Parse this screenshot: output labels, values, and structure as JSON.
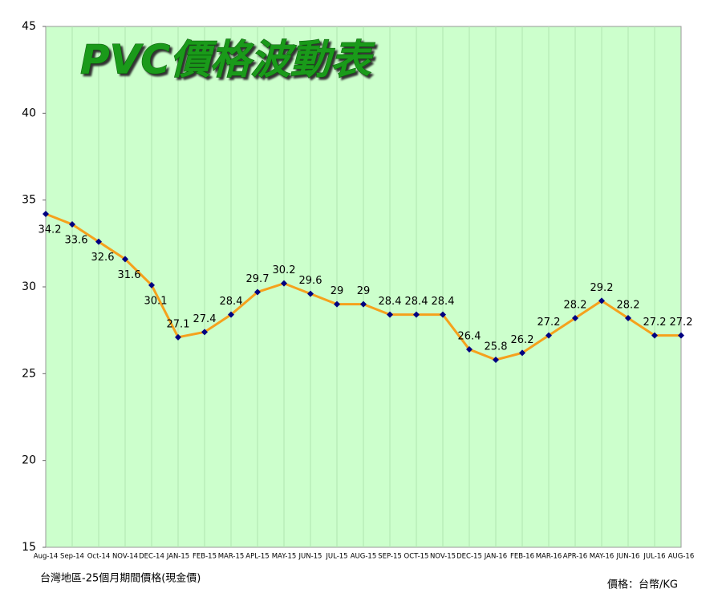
{
  "chart_data": {
    "type": "line",
    "title": "PVC價格波動表",
    "categories": [
      "Aug-14",
      "Sep-14",
      "Oct-14",
      "NOV-14",
      "DEC-14",
      "JAN-15",
      "FEB-15",
      "MAR-15",
      "APL-15",
      "MAY-15",
      "JUN-15",
      "JUL-15",
      "AUG-15",
      "SEP-15",
      "OCT-15",
      "NOV-15",
      "DEC-15",
      "JAN-16",
      "FEB-16",
      "MAR-16",
      "APR-16",
      "MAY-16",
      "JUN-16",
      "JUL-16",
      "AUG-16"
    ],
    "series": [
      {
        "name": "PVC",
        "color": "#f5a11c",
        "marker_color": "#000080",
        "values": [
          34.2,
          33.6,
          32.6,
          31.6,
          30.1,
          27.1,
          27.4,
          28.4,
          29.7,
          30.2,
          29.6,
          29,
          29,
          28.4,
          28.4,
          28.4,
          26.4,
          25.8,
          26.2,
          27.2,
          28.2,
          29.2,
          28.2,
          27.2,
          27.2
        ]
      }
    ],
    "ylim": [
      15,
      45
    ],
    "yticks": [
      15,
      20,
      25,
      30,
      35,
      40,
      45
    ],
    "grid": "x",
    "background": "#ccffcc",
    "footnote_left": "台灣地區-25個月期間價格(現金價)",
    "footnote_right": "價格：台幣/KG"
  }
}
